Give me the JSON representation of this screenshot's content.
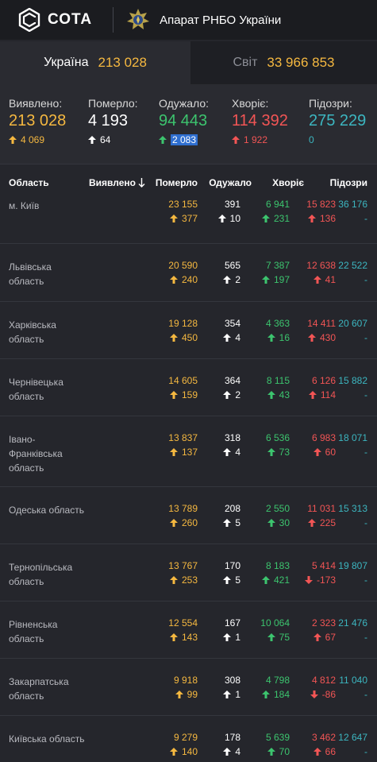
{
  "header": {
    "brand": "СОТА",
    "org_name": "Апарат РНБО України"
  },
  "tabs": [
    {
      "label": "Україна",
      "value": "213 028",
      "active": true
    },
    {
      "label": "Світ",
      "value": "33 966 853",
      "active": false
    }
  ],
  "summary": [
    {
      "label": "Виявлено:",
      "value": "213 028",
      "delta": "4 069",
      "color": "#f5b840",
      "delta_color": "#f5b840",
      "arrow": "up"
    },
    {
      "label": "Померло:",
      "value": "4 193",
      "delta": "64",
      "color": "#ffffff",
      "delta_color": "#ffffff",
      "arrow": "up"
    },
    {
      "label": "Одужало:",
      "value": "94 443",
      "delta": "2 083",
      "color": "#3cc46e",
      "delta_color": "#3cc46e",
      "arrow": "up"
    },
    {
      "label": "Хворіє:",
      "value": "114 392",
      "delta": "1 922",
      "color": "#f25555",
      "delta_color": "#f25555",
      "arrow": "up"
    },
    {
      "label": "Підозри:",
      "value": "275 229",
      "delta": "0",
      "color": "#3cb6c0",
      "delta_color": "#3cb6c0",
      "arrow": "none"
    }
  ],
  "table": {
    "headers": {
      "region": "Область",
      "confirmed": "Виявлено",
      "deaths": "Померло",
      "recovered": "Одужало",
      "sick": "Хворіє",
      "suspected": "Підозри"
    },
    "sort_icon": "sort-down-arrow-icon",
    "rows": [
      {
        "region": "м. Київ",
        "confirmed": "23 155",
        "confirmed_delta": "377",
        "deaths": "391",
        "deaths_delta": "10",
        "recovered": "6 941",
        "recovered_delta": "231",
        "sick": "15 823",
        "sick_delta": "136",
        "sick_dir": "up",
        "suspected": "36 176",
        "suspected_delta": "-"
      },
      {
        "region": "Львівська область",
        "confirmed": "20 590",
        "confirmed_delta": "240",
        "deaths": "565",
        "deaths_delta": "2",
        "recovered": "7 387",
        "recovered_delta": "197",
        "sick": "12 638",
        "sick_delta": "41",
        "sick_dir": "up",
        "suspected": "22 522",
        "suspected_delta": "-"
      },
      {
        "region": "Харківська область",
        "confirmed": "19 128",
        "confirmed_delta": "450",
        "deaths": "354",
        "deaths_delta": "4",
        "recovered": "4 363",
        "recovered_delta": "16",
        "sick": "14 411",
        "sick_delta": "430",
        "sick_dir": "up",
        "suspected": "20 607",
        "suspected_delta": "-"
      },
      {
        "region": "Чернівецька область",
        "confirmed": "14 605",
        "confirmed_delta": "159",
        "deaths": "364",
        "deaths_delta": "2",
        "recovered": "8 115",
        "recovered_delta": "43",
        "sick": "6 126",
        "sick_delta": "114",
        "sick_dir": "up",
        "suspected": "15 882",
        "suspected_delta": "-"
      },
      {
        "region": "Івано-Франківська область",
        "confirmed": "13 837",
        "confirmed_delta": "137",
        "deaths": "318",
        "deaths_delta": "4",
        "recovered": "6 536",
        "recovered_delta": "73",
        "sick": "6 983",
        "sick_delta": "60",
        "sick_dir": "up",
        "suspected": "18 071",
        "suspected_delta": "-"
      },
      {
        "region": "Одеська область",
        "confirmed": "13 789",
        "confirmed_delta": "260",
        "deaths": "208",
        "deaths_delta": "5",
        "recovered": "2 550",
        "recovered_delta": "30",
        "sick": "11 031",
        "sick_delta": "225",
        "sick_dir": "up",
        "suspected": "15 313",
        "suspected_delta": "-"
      },
      {
        "region": "Тернопільська область",
        "confirmed": "13 767",
        "confirmed_delta": "253",
        "deaths": "170",
        "deaths_delta": "5",
        "recovered": "8 183",
        "recovered_delta": "421",
        "sick": "5 414",
        "sick_delta": "-173",
        "sick_dir": "down",
        "suspected": "19 807",
        "suspected_delta": "-"
      },
      {
        "region": "Рівненська область",
        "confirmed": "12 554",
        "confirmed_delta": "143",
        "deaths": "167",
        "deaths_delta": "1",
        "recovered": "10 064",
        "recovered_delta": "75",
        "sick": "2 323",
        "sick_delta": "67",
        "sick_dir": "up",
        "suspected": "21 476",
        "suspected_delta": "-"
      },
      {
        "region": "Закарпатська область",
        "confirmed": "9 918",
        "confirmed_delta": "99",
        "deaths": "308",
        "deaths_delta": "1",
        "recovered": "4 798",
        "recovered_delta": "184",
        "sick": "4 812",
        "sick_delta": "-86",
        "sick_dir": "down",
        "suspected": "11 040",
        "suspected_delta": "-"
      },
      {
        "region": "Київська область",
        "confirmed": "9 279",
        "confirmed_delta": "140",
        "deaths": "178",
        "deaths_delta": "4",
        "recovered": "5 639",
        "recovered_delta": "70",
        "sick": "3 462",
        "sick_delta": "66",
        "sick_dir": "up",
        "suspected": "12 647",
        "suspected_delta": "-"
      }
    ]
  }
}
